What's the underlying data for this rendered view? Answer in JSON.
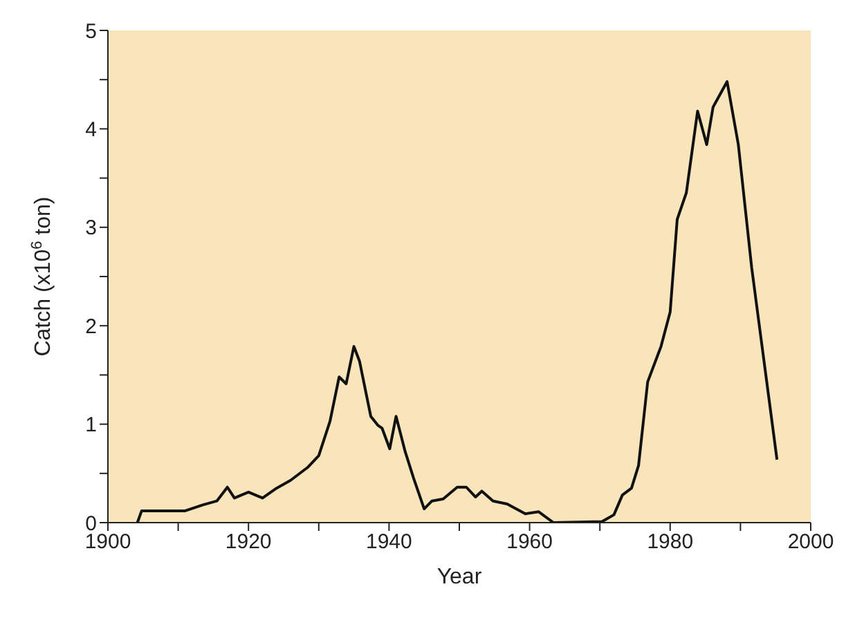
{
  "chart_data": {
    "type": "line",
    "xlabel": "Year",
    "ylabel": "Catch (x10$^{6}$ ton)",
    "x": [
      1904.2,
      1904.8,
      1911,
      1913.5,
      1915.5,
      1917,
      1918,
      1920,
      1922,
      1924,
      1926,
      1928.4,
      1930,
      1931.6,
      1932.9,
      1933.9,
      1935,
      1935.8,
      1937.4,
      1938.4,
      1939,
      1940.1,
      1941,
      1942.3,
      1943.5,
      1945,
      1946.1,
      1947.7,
      1949.7,
      1951,
      1952.3,
      1953.2,
      1954.8,
      1956.8,
      1959.4,
      1961.3,
      1963.4,
      1970.3,
      1972,
      1973.2,
      1974.5,
      1975.5,
      1976.8,
      1978.7,
      1980,
      1981,
      1982.3,
      1983.9,
      1985.2,
      1986.1,
      1988.1,
      1989.7,
      1991.6,
      1995.2
    ],
    "series": [
      {
        "color": "#111111",
        "values": [
          0,
          0.12,
          0.12,
          0.18,
          0.22,
          0.36,
          0.25,
          0.31,
          0.25,
          0.35,
          0.43,
          0.56,
          0.68,
          1.03,
          1.48,
          1.41,
          1.79,
          1.64,
          1.08,
          0.99,
          0.96,
          0.75,
          1.08,
          0.72,
          0.45,
          0.14,
          0.22,
          0.24,
          0.36,
          0.36,
          0.26,
          0.32,
          0.22,
          0.19,
          0.09,
          0.11,
          0,
          0.01,
          0.08,
          0.28,
          0.35,
          0.58,
          1.43,
          1.79,
          2.14,
          3.08,
          3.35,
          4.18,
          3.84,
          4.22,
          4.48,
          3.84,
          2.59,
          0.64
        ]
      }
    ],
    "xlim": [
      1900,
      2000
    ],
    "xticks": [
      1900,
      {
        "value": 1910,
        "label": null
      },
      1920,
      {
        "value": 1930,
        "label": null
      },
      1940,
      {
        "value": 1950,
        "label": null
      },
      1960,
      {
        "value": 1970,
        "label": null
      },
      1980,
      {
        "value": 1990,
        "label": null
      },
      2000
    ],
    "ylim": [
      0,
      5
    ],
    "yticks": [
      0,
      {
        "value": 0.5,
        "label": null
      },
      1,
      {
        "value": 1.5,
        "label": null
      },
      2,
      {
        "value": 2.5,
        "label": null
      },
      3,
      {
        "value": 3.5,
        "label": null
      },
      4,
      {
        "value": 4.5,
        "label": null
      },
      5
    ],
    "grid": false,
    "legend": false,
    "marker": "none",
    "line_style": "solid"
  }
}
